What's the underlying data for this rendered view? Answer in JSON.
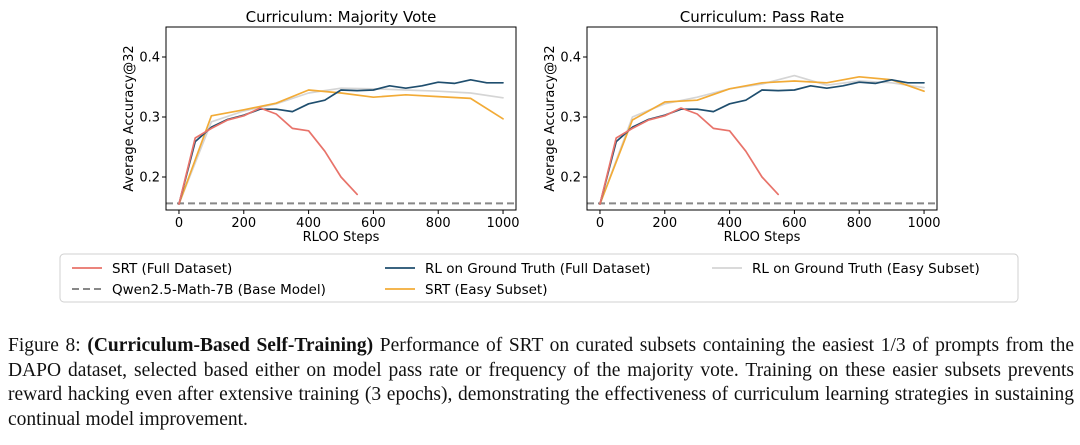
{
  "chart_data": [
    {
      "type": "line",
      "title": "Curriculum: Majority Vote",
      "xlabel": "RLOO Steps",
      "ylabel": "Average Accuracy@32",
      "xlim": [
        -40,
        1040
      ],
      "ylim": [
        0.145,
        0.45
      ],
      "xticks": [
        0,
        200,
        400,
        600,
        800,
        1000
      ],
      "yticks": [
        0.2,
        0.3,
        0.4
      ],
      "grid": false,
      "series": [
        {
          "key": "srt_full",
          "name": "SRT (Full Dataset)",
          "color": "#e8736a",
          "x": [
            0,
            50,
            100,
            150,
            200,
            250,
            300,
            350,
            400,
            450,
            500,
            550
          ],
          "y": [
            0.155,
            0.265,
            0.281,
            0.295,
            0.302,
            0.315,
            0.305,
            0.281,
            0.277,
            0.243,
            0.2,
            0.171
          ]
        },
        {
          "key": "rl_gt_full",
          "name": "RL on Ground Truth (Full Dataset)",
          "color": "#1f4e6e",
          "x": [
            0,
            50,
            100,
            150,
            200,
            250,
            300,
            350,
            400,
            450,
            500,
            550,
            600,
            650,
            700,
            750,
            800,
            850,
            900,
            950,
            1000
          ],
          "y": [
            0.155,
            0.259,
            0.283,
            0.296,
            0.303,
            0.313,
            0.313,
            0.309,
            0.322,
            0.328,
            0.345,
            0.344,
            0.345,
            0.352,
            0.348,
            0.352,
            0.358,
            0.356,
            0.362,
            0.357,
            0.357
          ]
        },
        {
          "key": "rl_gt_easy",
          "name": "RL on Ground Truth (Easy Subset)",
          "color": "#d5d5d5",
          "x": [
            0,
            100,
            200,
            300,
            400,
            500,
            600,
            700,
            800,
            900,
            1000
          ],
          "y": [
            0.155,
            0.292,
            0.31,
            0.322,
            0.34,
            0.348,
            0.347,
            0.345,
            0.343,
            0.34,
            0.332
          ]
        },
        {
          "key": "base",
          "name": "Qwen2.5-Math-7B (Base Model)",
          "color": "#888888",
          "x": [
            -40,
            1040
          ],
          "y": [
            0.156,
            0.156
          ]
        },
        {
          "key": "srt_easy",
          "name": "SRT (Easy Subset)",
          "color": "#f2ab37",
          "x": [
            0,
            100,
            200,
            300,
            400,
            500,
            600,
            700,
            800,
            900,
            1000
          ],
          "y": [
            0.155,
            0.302,
            0.312,
            0.323,
            0.345,
            0.34,
            0.333,
            0.337,
            0.334,
            0.331,
            0.297
          ]
        }
      ]
    },
    {
      "type": "line",
      "title": "Curriculum: Pass Rate",
      "xlabel": "RLOO Steps",
      "ylabel": "Average Accuracy@32",
      "xlim": [
        -40,
        1040
      ],
      "ylim": [
        0.145,
        0.45
      ],
      "xticks": [
        0,
        200,
        400,
        600,
        800,
        1000
      ],
      "yticks": [
        0.2,
        0.3,
        0.4
      ],
      "grid": false,
      "series": [
        {
          "key": "srt_full",
          "name": "SRT (Full Dataset)",
          "color": "#e8736a",
          "x": [
            0,
            50,
            100,
            150,
            200,
            250,
            300,
            350,
            400,
            450,
            500,
            550
          ],
          "y": [
            0.155,
            0.265,
            0.281,
            0.295,
            0.302,
            0.315,
            0.305,
            0.281,
            0.277,
            0.243,
            0.2,
            0.171
          ]
        },
        {
          "key": "rl_gt_full",
          "name": "RL on Ground Truth (Full Dataset)",
          "color": "#1f4e6e",
          "x": [
            0,
            50,
            100,
            150,
            200,
            250,
            300,
            350,
            400,
            450,
            500,
            550,
            600,
            650,
            700,
            750,
            800,
            850,
            900,
            950,
            1000
          ],
          "y": [
            0.155,
            0.259,
            0.283,
            0.296,
            0.303,
            0.313,
            0.313,
            0.309,
            0.322,
            0.328,
            0.345,
            0.344,
            0.345,
            0.352,
            0.348,
            0.352,
            0.358,
            0.356,
            0.362,
            0.357,
            0.357
          ]
        },
        {
          "key": "rl_gt_easy",
          "name": "RL on Ground Truth (Easy Subset)",
          "color": "#d5d5d5",
          "x": [
            0,
            100,
            200,
            300,
            400,
            500,
            600,
            700,
            800,
            900,
            1000
          ],
          "y": [
            0.155,
            0.3,
            0.322,
            0.333,
            0.347,
            0.355,
            0.369,
            0.353,
            0.36,
            0.357,
            0.349
          ]
        },
        {
          "key": "base",
          "name": "Qwen2.5-Math-7B (Base Model)",
          "color": "#888888",
          "x": [
            -40,
            1040
          ],
          "y": [
            0.156,
            0.156
          ]
        },
        {
          "key": "srt_easy",
          "name": "SRT (Easy Subset)",
          "color": "#f2ab37",
          "x": [
            0,
            100,
            200,
            300,
            400,
            500,
            600,
            700,
            800,
            900,
            1000
          ],
          "y": [
            0.155,
            0.295,
            0.325,
            0.328,
            0.347,
            0.357,
            0.36,
            0.357,
            0.367,
            0.362,
            0.343
          ]
        }
      ]
    }
  ],
  "legend": {
    "items": [
      {
        "key": "srt_full",
        "label": "SRT (Full Dataset)",
        "color": "#e8736a",
        "dash": false
      },
      {
        "key": "base",
        "label": "Qwen2.5-Math-7B (Base Model)",
        "color": "#888888",
        "dash": true
      },
      {
        "key": "rl_gt_full",
        "label": "RL on Ground Truth (Full Dataset)",
        "color": "#1f4e6e",
        "dash": false
      },
      {
        "key": "srt_easy",
        "label": "SRT (Easy Subset)",
        "color": "#f2ab37",
        "dash": false
      },
      {
        "key": "rl_gt_easy",
        "label": "RL on Ground Truth (Easy Subset)",
        "color": "#d5d5d5",
        "dash": false
      }
    ]
  },
  "caption": {
    "label": "Figure 8:",
    "bold": "(Curriculum-Based Self-Training)",
    "text": "Performance of SRT on curated subsets containing the easiest 1/3 of prompts from the DAPO dataset, selected based either on model pass rate or frequency of the majority vote. Training on these easier subsets prevents reward hacking even after extensive training (3 epochs), demonstrating the effectiveness of curriculum learning strategies in sustaining continual model improvement."
  }
}
